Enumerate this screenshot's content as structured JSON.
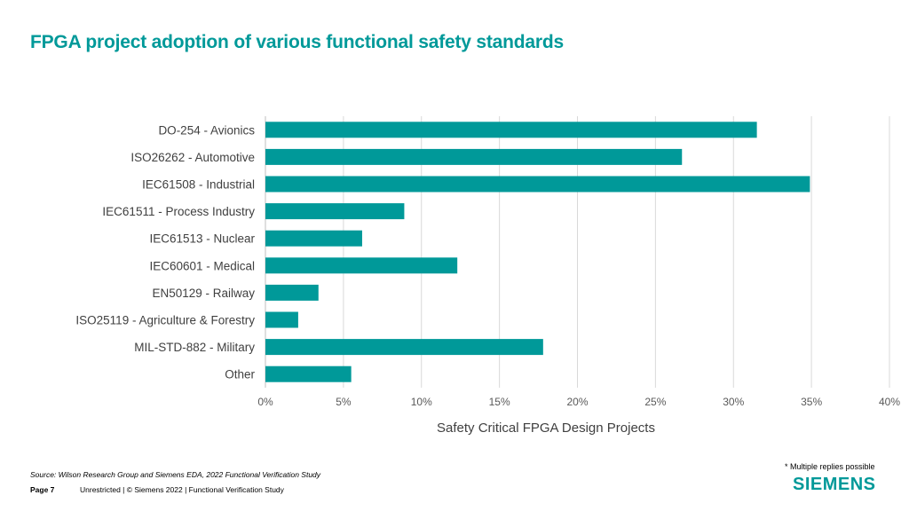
{
  "slide": {
    "title": "FPGA project adoption of various functional safety standards",
    "note": "* Multiple replies possible",
    "source": "Source:  Wilson Research Group and Siemens EDA, 2022 Functional Verification Study",
    "page_label": "Page 7",
    "footer_text": "Unrestricted | © Siemens 2022 |  Functional Verification Study",
    "logo_text": "SIEMENS",
    "accent_color": "#009999"
  },
  "chart_data": {
    "type": "bar",
    "orientation": "horizontal",
    "categories": [
      "DO-254 - Avionics",
      "ISO26262 - Automotive",
      "IEC61508 - Industrial",
      "IEC61511 - Process Industry",
      "IEC61513 - Nuclear",
      "IEC60601 - Medical",
      "EN50129 - Railway",
      "ISO25119 - Agriculture & Forestry",
      "MIL-STD-882 - Military",
      "Other"
    ],
    "values": [
      31.5,
      26.7,
      34.9,
      8.9,
      6.2,
      12.3,
      3.4,
      2.1,
      17.8,
      5.5
    ],
    "xlabel": "Safety Critical FPGA Design Projects",
    "ylabel": "",
    "xlim": [
      0,
      40
    ],
    "xticks": [
      0,
      5,
      10,
      15,
      20,
      25,
      30,
      35,
      40
    ],
    "tick_labels": [
      "0%",
      "5%",
      "10%",
      "15%",
      "20%",
      "25%",
      "30%",
      "35%",
      "40%"
    ],
    "grid": "vertical",
    "bar_color": "#009999"
  }
}
